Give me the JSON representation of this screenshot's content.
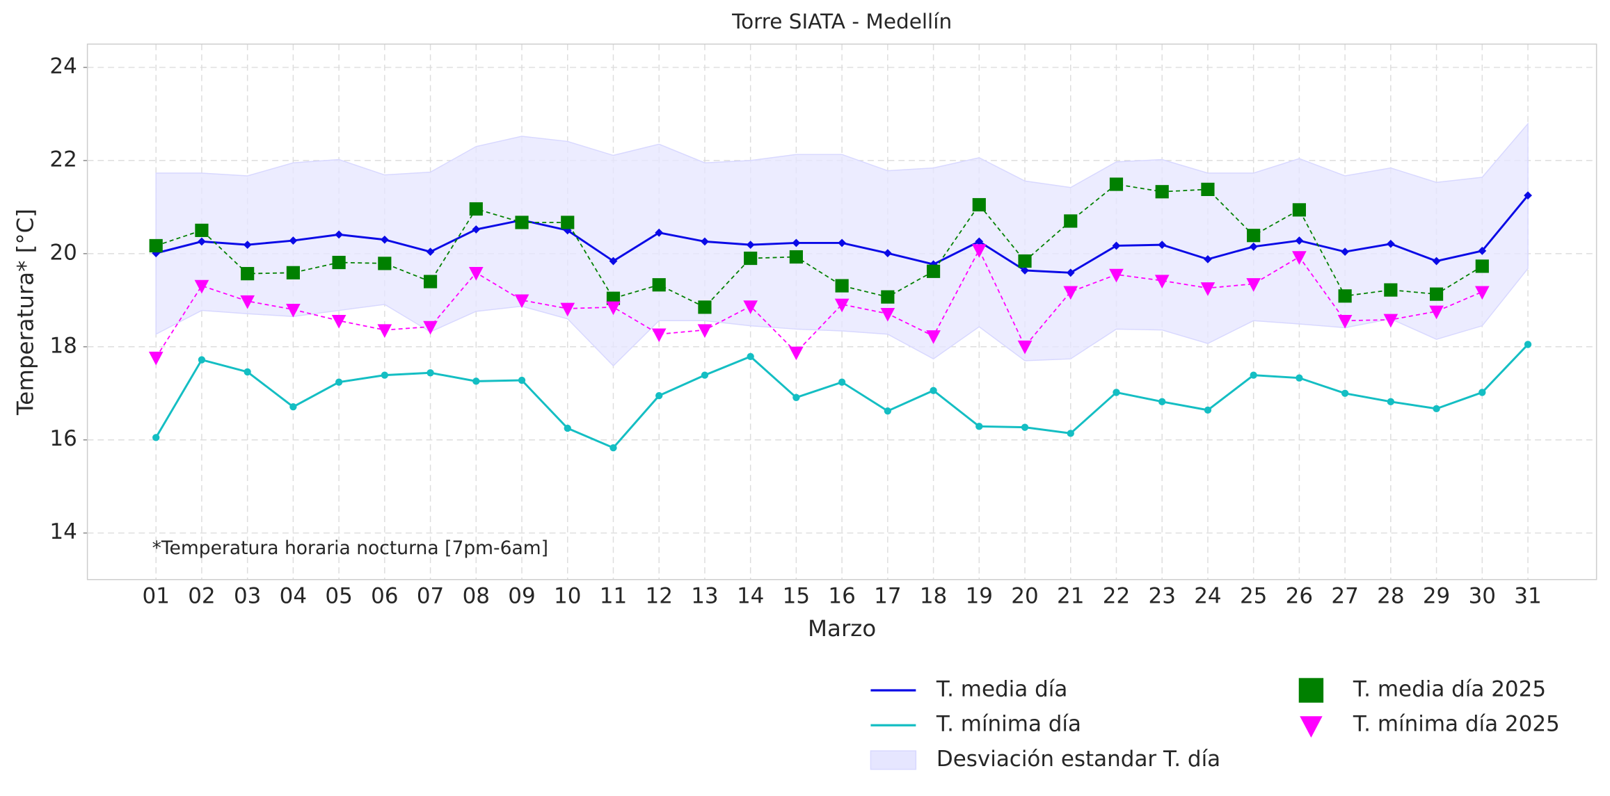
{
  "chart_data": {
    "type": "line",
    "title": "Torre SIATA - Medellín",
    "x_label": "Marzo",
    "y_label": "Temperatura* [°C]",
    "annotation": "*Temperatura horaria nocturna [7pm-6am]",
    "categories": [
      "01",
      "02",
      "03",
      "04",
      "05",
      "06",
      "07",
      "08",
      "09",
      "10",
      "11",
      "12",
      "13",
      "14",
      "15",
      "16",
      "17",
      "18",
      "19",
      "20",
      "21",
      "22",
      "23",
      "24",
      "25",
      "26",
      "27",
      "28",
      "29",
      "30",
      "31"
    ],
    "ylim": [
      13,
      24.5
    ],
    "yticks": [
      14,
      16,
      18,
      20,
      22,
      24
    ],
    "grid": true,
    "legend": "bottom right",
    "series": [
      {
        "name": "T. media día",
        "color": "#0a0ae6",
        "style": "solid",
        "marker": "diamond",
        "values": [
          20.01,
          20.26,
          20.19,
          20.28,
          20.41,
          20.3,
          20.04,
          20.52,
          20.72,
          20.5,
          19.84,
          20.45,
          20.26,
          20.19,
          20.23,
          20.23,
          20.01,
          19.77,
          20.26,
          19.64,
          19.59,
          20.17,
          20.19,
          19.88,
          20.15,
          20.28,
          20.04,
          20.21,
          19.84,
          20.06,
          21.25
        ]
      },
      {
        "name": "T. mínima día",
        "color": "#14bec3",
        "style": "solid",
        "marker": "circle",
        "values": [
          16.05,
          17.72,
          17.46,
          16.71,
          17.24,
          17.39,
          17.44,
          17.26,
          17.28,
          16.25,
          15.83,
          16.95,
          17.39,
          17.79,
          16.91,
          17.24,
          16.62,
          17.06,
          16.29,
          16.27,
          16.14,
          17.02,
          16.82,
          16.64,
          17.39,
          17.33,
          17.0,
          16.82,
          16.67,
          17.02,
          18.05
        ]
      },
      {
        "name": "Desviación estandar T. día",
        "color": "#e6e6ff",
        "style": "band",
        "upper": [
          21.73,
          21.73,
          21.67,
          21.95,
          22.02,
          21.69,
          21.75,
          22.3,
          22.52,
          22.41,
          22.11,
          22.35,
          21.95,
          22.0,
          22.13,
          22.13,
          21.78,
          21.84,
          22.06,
          21.56,
          21.42,
          21.97,
          22.02,
          21.73,
          21.73,
          22.04,
          21.67,
          21.84,
          21.53,
          21.64,
          22.79
        ],
        "lower": [
          18.27,
          18.78,
          18.71,
          18.65,
          18.78,
          18.91,
          18.32,
          18.76,
          18.87,
          18.6,
          17.59,
          18.56,
          18.56,
          18.45,
          18.38,
          18.34,
          18.27,
          17.74,
          18.43,
          17.7,
          17.74,
          18.38,
          18.36,
          18.07,
          18.56,
          18.49,
          18.41,
          18.6,
          18.16,
          18.45,
          19.68
        ]
      },
      {
        "name": "T. media día 2025",
        "color": "#008000",
        "style": "dashed",
        "marker": "square",
        "values": [
          20.17,
          20.5,
          19.57,
          19.59,
          19.81,
          19.79,
          19.4,
          20.96,
          20.67,
          20.67,
          19.04,
          19.33,
          18.85,
          19.9,
          19.93,
          19.31,
          19.07,
          19.62,
          21.05,
          19.84,
          20.7,
          21.49,
          21.33,
          21.38,
          20.39,
          20.94,
          19.09,
          19.22,
          19.13,
          19.73,
          null
        ]
      },
      {
        "name": "T. mínima día 2025",
        "color": "#ff00ff",
        "style": "dashed",
        "marker": "triangle_down",
        "values": [
          17.77,
          19.31,
          18.98,
          18.8,
          18.56,
          18.36,
          18.43,
          19.59,
          19.0,
          18.82,
          18.85,
          18.27,
          18.36,
          18.87,
          17.88,
          18.91,
          18.71,
          18.23,
          20.08,
          18.01,
          19.18,
          19.55,
          19.42,
          19.26,
          19.35,
          19.93,
          18.56,
          18.58,
          18.76,
          19.18,
          null
        ]
      }
    ]
  }
}
